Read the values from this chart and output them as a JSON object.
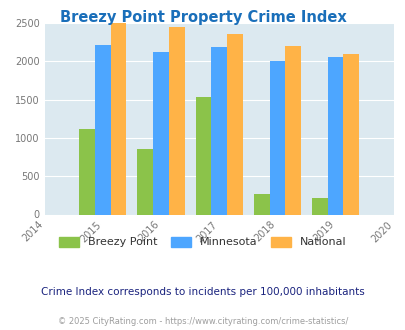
{
  "title": "Breezy Point Property Crime Index",
  "years": [
    2015,
    2016,
    2017,
    2018,
    2019
  ],
  "breezy_point": [
    1112,
    851,
    1530,
    263,
    213
  ],
  "minnesota": [
    2210,
    2120,
    2185,
    2000,
    2060
  ],
  "national": [
    2495,
    2445,
    2355,
    2200,
    2095
  ],
  "bar_colors": {
    "breezy_point": "#8bc34a",
    "minnesota": "#4da6ff",
    "national": "#ffb347"
  },
  "legend_labels": [
    "Breezy Point",
    "Minnesota",
    "National"
  ],
  "legend_text_color": "#333333",
  "subtitle": "Crime Index corresponds to incidents per 100,000 inhabitants",
  "footer": "© 2025 CityRating.com - https://www.cityrating.com/crime-statistics/",
  "title_color": "#1a6fba",
  "subtitle_color": "#1a237e",
  "footer_color": "#9e9e9e",
  "bg_color": "#dce9f0",
  "ylim": [
    0,
    2500
  ],
  "xlim": [
    2014,
    2020
  ],
  "yticks": [
    0,
    500,
    1000,
    1500,
    2000,
    2500
  ],
  "xticks": [
    2014,
    2015,
    2016,
    2017,
    2018,
    2019,
    2020
  ],
  "bar_width": 0.27
}
